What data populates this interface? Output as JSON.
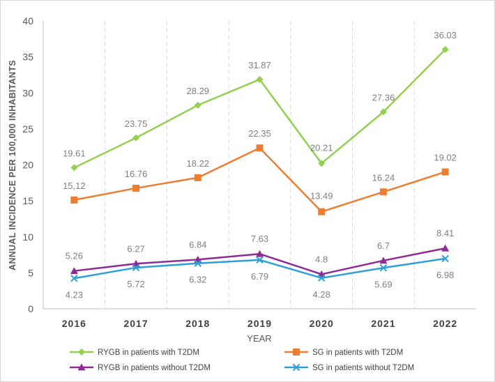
{
  "chart_data": {
    "type": "line",
    "title": "",
    "xlabel": "YEAR",
    "ylabel": "ANNUAL INCIDENCE PER 100,000 INHABITANTS",
    "ylim": [
      0,
      40
    ],
    "yticks": [
      "0",
      "5",
      "10",
      "15",
      "20",
      "25",
      "30",
      "35",
      "40"
    ],
    "categories": [
      "2016",
      "2017",
      "2018",
      "2019",
      "2020",
      "2021",
      "2022"
    ],
    "grid": "vertical dashed",
    "legend_position": "bottom",
    "series": [
      {
        "name": "RYGB in patients with T2DM",
        "color": "#92d050",
        "marker": "diamond",
        "values": [
          19.61,
          23.75,
          28.29,
          31.87,
          20.21,
          27.36,
          36.03
        ],
        "labels": [
          "19.61",
          "23.75",
          "28.29",
          "31.87",
          "20.21",
          "27.36",
          "36.03"
        ]
      },
      {
        "name": "SG in patients with T2DM",
        "color": "#ed7d31",
        "marker": "square",
        "values": [
          15.12,
          16.76,
          18.22,
          22.35,
          13.49,
          16.24,
          19.02
        ],
        "labels": [
          "15,12",
          "16.76",
          "18.22",
          "22.35",
          "13.49",
          "16.24",
          "19.02"
        ]
      },
      {
        "name": "RYGB in patients without T2DM",
        "color": "#8e2b95",
        "marker": "triangle",
        "values": [
          5.26,
          6.27,
          6.84,
          7.63,
          4.8,
          6.7,
          8.41
        ],
        "labels": [
          "5.26",
          "6.27",
          "6.84",
          "7.63",
          "4.8",
          "6.7",
          "8.41"
        ]
      },
      {
        "name": "SG in patients without T2DM",
        "color": "#2e9fd6",
        "marker": "x",
        "values": [
          4.23,
          5.72,
          6.32,
          6.79,
          4.28,
          5.69,
          6.98
        ],
        "labels": [
          "4.23",
          "5.72",
          "6.32",
          "6.79",
          "4.28",
          "5.69",
          "6.98"
        ]
      }
    ]
  }
}
